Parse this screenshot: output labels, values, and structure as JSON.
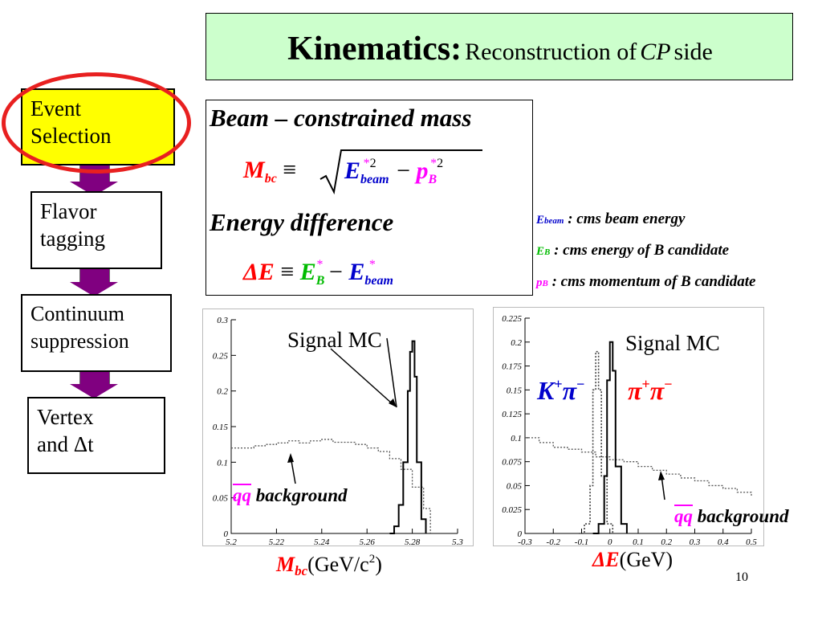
{
  "title": {
    "main": "Kinematics:",
    "sub_prefix": "Reconstruction of",
    "sub_cp": "CP",
    "sub_suffix": "side"
  },
  "flow": {
    "steps": [
      {
        "line1": "Event",
        "line2": "Selection"
      },
      {
        "line1": "Flavor",
        "line2": "tagging"
      },
      {
        "line1": "Continuum",
        "line2": "suppression"
      },
      {
        "line1": "Vertex",
        "line2": "and Δt"
      }
    ],
    "colors": {
      "highlight": "#ffff00",
      "arrow": "#800080",
      "ellipse": "#e82020"
    }
  },
  "formulas": {
    "heading1": "Beam – constrained mass",
    "heading2": "Energy difference",
    "mbc_symbol": "M",
    "mbc_sub": "bc",
    "equiv": "≡",
    "e_symbol": "E",
    "beam_sub": "beam",
    "star2": "*2",
    "star": "*",
    "minus": "−",
    "p_symbol": "p",
    "b_sub": "B",
    "delta_e": "ΔE"
  },
  "legend": [
    {
      "sym": "E",
      "sub": "beam",
      "text": ": cms beam energy",
      "color": "#0000cc"
    },
    {
      "sym": "E",
      "sub": "B",
      "text": ": cms energy of  B candidate",
      "color": "#00bb00"
    },
    {
      "sym": "p",
      "sub": "B",
      "text": ": cms momentum of B candidate",
      "color": "#ff00ff"
    }
  ],
  "chart_data": [
    {
      "type": "line",
      "title": "",
      "xlabel": "M_bc (GeV/c^2)",
      "ylabel": "",
      "xlim": [
        5.2,
        5.3
      ],
      "ylim": [
        0,
        0.3
      ],
      "x_ticks": [
        "5.2",
        "5.22",
        "5.24",
        "5.26",
        "5.28",
        "5.3"
      ],
      "y_ticks": [
        "0",
        "0.05",
        "0.1",
        "0.15",
        "0.2",
        "0.25",
        "0.3"
      ],
      "annotations": [
        "Signal MC",
        "qq background"
      ],
      "series": [
        {
          "style": "solid",
          "x": [
            5.27,
            5.272,
            5.274,
            5.276,
            5.278,
            5.279,
            5.28,
            5.281,
            5.282,
            5.284,
            5.286
          ],
          "values": [
            0.0,
            0.01,
            0.04,
            0.1,
            0.2,
            0.255,
            0.27,
            0.22,
            0.1,
            0.02,
            0.0
          ]
        },
        {
          "style": "dotted",
          "x": [
            5.2,
            5.205,
            5.21,
            5.215,
            5.22,
            5.225,
            5.23,
            5.235,
            5.24,
            5.245,
            5.25,
            5.255,
            5.26,
            5.265,
            5.27,
            5.275,
            5.28,
            5.285,
            5.288
          ],
          "values": [
            0.12,
            0.12,
            0.123,
            0.125,
            0.127,
            0.13,
            0.127,
            0.13,
            0.132,
            0.128,
            0.128,
            0.125,
            0.12,
            0.115,
            0.105,
            0.09,
            0.065,
            0.035,
            0.0
          ]
        }
      ]
    },
    {
      "type": "line",
      "title": "",
      "xlabel": "ΔE (GeV)",
      "ylabel": "",
      "xlim": [
        -0.3,
        0.5
      ],
      "ylim": [
        0,
        0.225
      ],
      "x_ticks": [
        "-0.3",
        "-0.2",
        "-0.1",
        "0",
        "0.1",
        "0.2",
        "0.3",
        "0.4",
        "0.5"
      ],
      "y_ticks": [
        "0",
        "0.025",
        "0.05",
        "0.075",
        "0.1",
        "0.125",
        "0.15",
        "0.175",
        "0.2",
        "0.225"
      ],
      "annotations": [
        "Signal MC",
        "K+π−",
        "π+π−",
        "qq background"
      ],
      "series": [
        {
          "name": "π+π−",
          "style": "solid",
          "x": [
            -0.06,
            -0.04,
            -0.02,
            -0.01,
            0.0,
            0.01,
            0.02,
            0.04,
            0.06
          ],
          "values": [
            0.0,
            0.01,
            0.06,
            0.16,
            0.2,
            0.17,
            0.07,
            0.01,
            0.0
          ]
        },
        {
          "name": "K+π−",
          "style": "dotted",
          "x": [
            -0.11,
            -0.09,
            -0.07,
            -0.06,
            -0.05,
            -0.04,
            -0.03,
            -0.01,
            0.01
          ],
          "values": [
            0.0,
            0.01,
            0.05,
            0.15,
            0.19,
            0.15,
            0.06,
            0.01,
            0.0
          ]
        },
        {
          "name": "qq background",
          "style": "dotted",
          "x": [
            -0.3,
            -0.25,
            -0.2,
            -0.15,
            -0.1,
            -0.05,
            0.0,
            0.05,
            0.1,
            0.15,
            0.2,
            0.25,
            0.3,
            0.35,
            0.4,
            0.45,
            0.5
          ],
          "values": [
            0.1,
            0.095,
            0.09,
            0.088,
            0.085,
            0.08,
            0.077,
            0.075,
            0.07,
            0.066,
            0.062,
            0.058,
            0.055,
            0.05,
            0.047,
            0.043,
            0.038
          ]
        }
      ]
    }
  ],
  "plot_labels": {
    "signal_mc": "Signal MC",
    "qq": "qq",
    "background": "background",
    "kpi": "K",
    "pipi": "π",
    "plus": "+",
    "minus_sup": "−",
    "pi": "π",
    "mbc_axis_m": "M",
    "mbc_axis_sub": "bc",
    "mbc_axis_unit": "(GeV/c",
    "mbc_axis_sup": "2",
    "mbc_axis_close": ")",
    "de_axis_e": "ΔE",
    "de_axis_unit": "(GeV)"
  },
  "page_number": "10"
}
